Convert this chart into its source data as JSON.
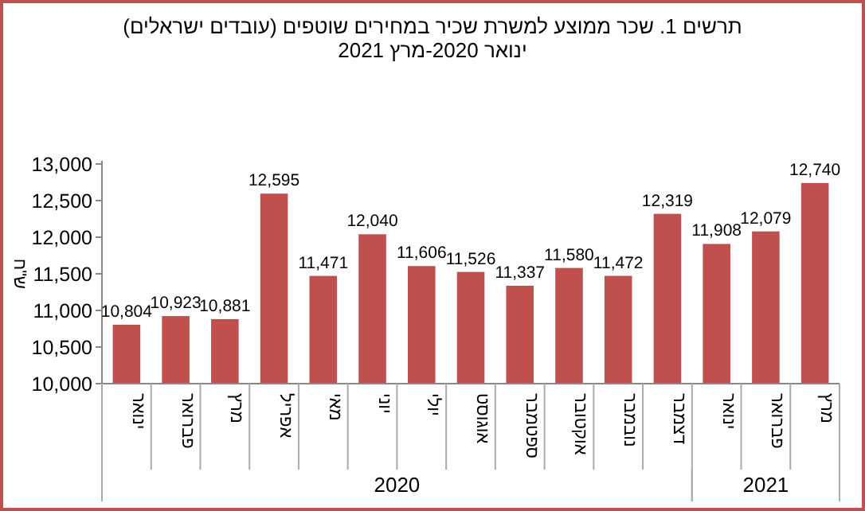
{
  "chart_data": {
    "type": "bar",
    "title": "תרשים 1. שכר ממוצע למשרת שכיר במחירים שוטפים (עובדים ישראלים)",
    "subtitle": "ינואר 2020-מרץ 2021",
    "ylabel": "ש\"ח",
    "categories": [
      "ינואר",
      "פברואר",
      "מרץ",
      "אפריל",
      "מאי",
      "יוני",
      "יולי",
      "אוגוסט",
      "ספטמבר",
      "אוקטובר",
      "נובמבר",
      "דצמבר",
      "ינואר",
      "פברואר",
      "מרץ"
    ],
    "values": [
      10804,
      10923,
      10881,
      12595,
      11471,
      12040,
      11606,
      11526,
      11337,
      11580,
      11472,
      12319,
      11908,
      12079,
      12740
    ],
    "color": "#c0504d",
    "ylim": [
      10000,
      13000
    ],
    "yticks": [
      {
        "value": 10000,
        "label": "10,000"
      },
      {
        "value": 10500,
        "label": "10,500"
      },
      {
        "value": 11000,
        "label": "11,000"
      },
      {
        "value": 11500,
        "label": "11,500"
      },
      {
        "value": 12000,
        "label": "12,000"
      },
      {
        "value": 12500,
        "label": "12,500"
      },
      {
        "value": 13000,
        "label": "13,000"
      }
    ],
    "value_labels": [
      "10,804",
      "10,923",
      "10,881",
      "12,595",
      "11,471",
      "12,040",
      "11,606",
      "11,526",
      "11,337",
      "11,580",
      "11,472",
      "12,319",
      "11,908",
      "12,079",
      "12,740"
    ],
    "grid": false,
    "annotations": [
      "2020",
      "2021"
    ]
  }
}
